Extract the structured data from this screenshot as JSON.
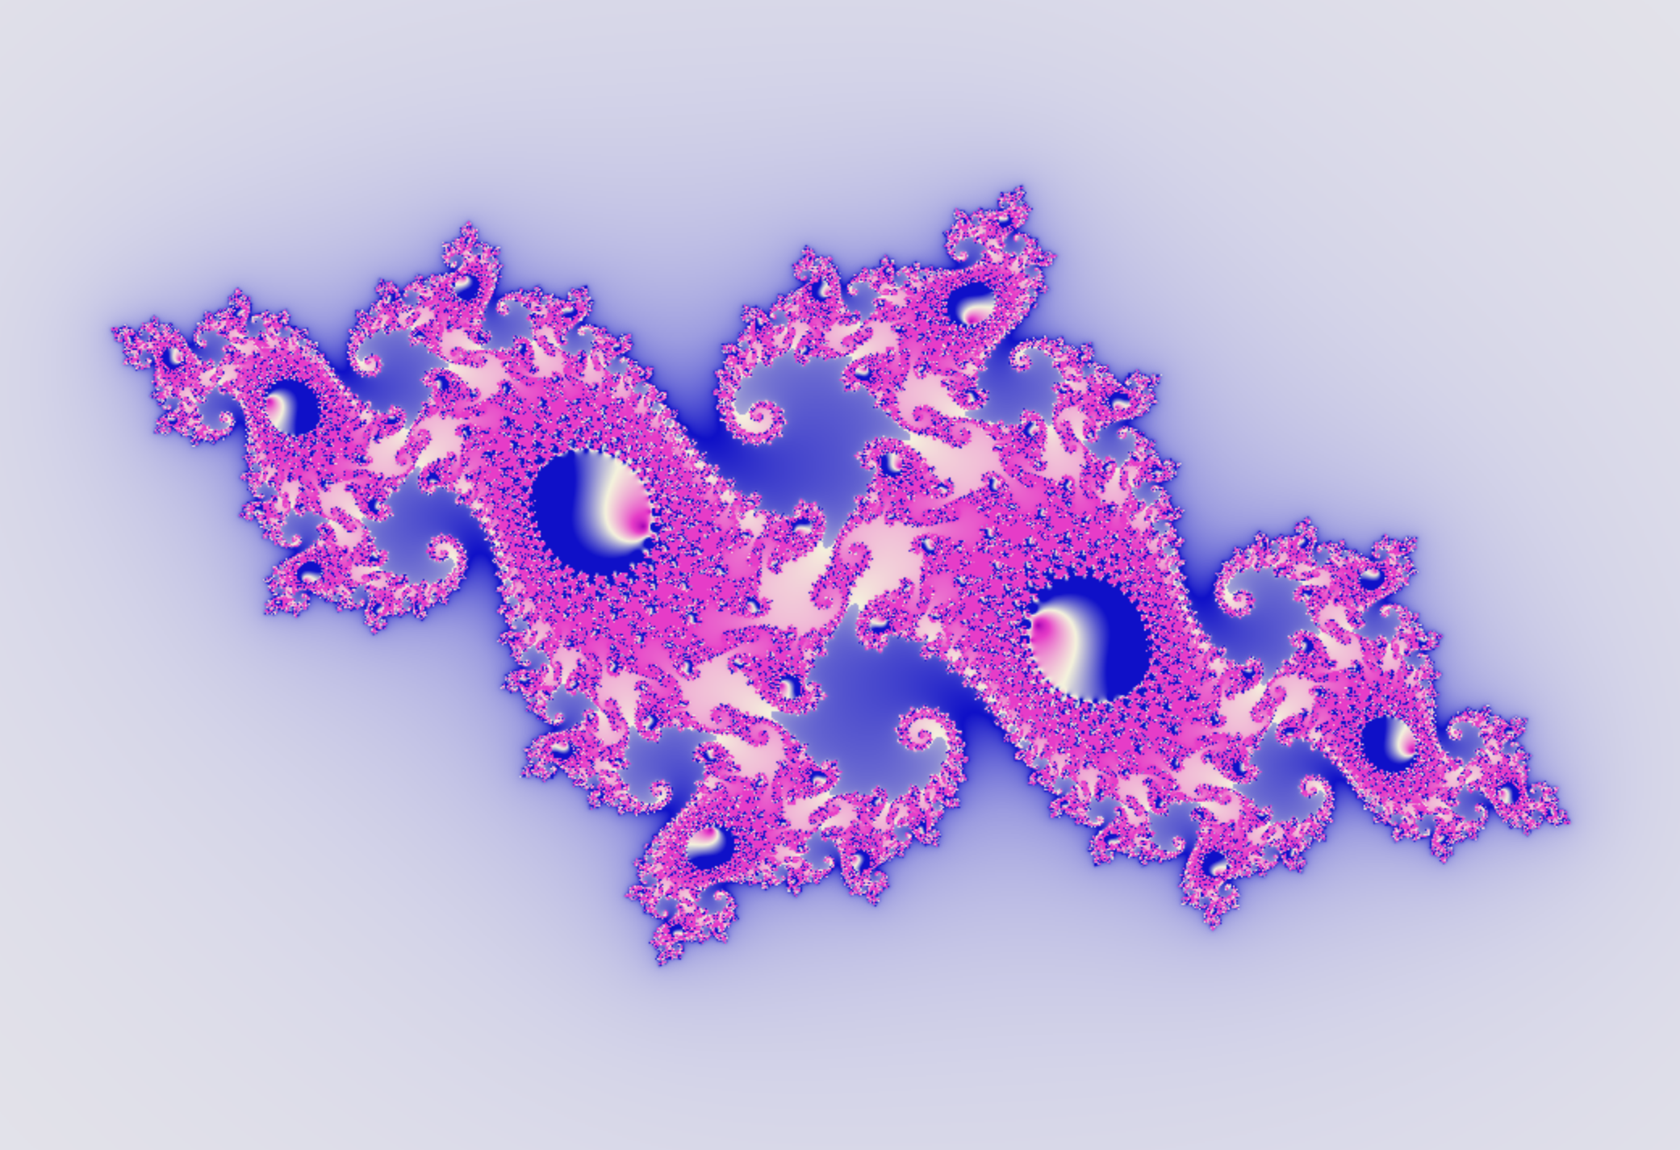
{
  "image": {
    "subject": "julia-set-fractal",
    "palette": {
      "background_outer": "#f0efeb",
      "background_inner": "#d4d4e8",
      "halo": "#9d9de0",
      "body": "#0f10c8",
      "spiral_highlight": "#f5f3dd",
      "spiral_core": "#e63cc8",
      "spiral_center": "#a000b4"
    }
  }
}
